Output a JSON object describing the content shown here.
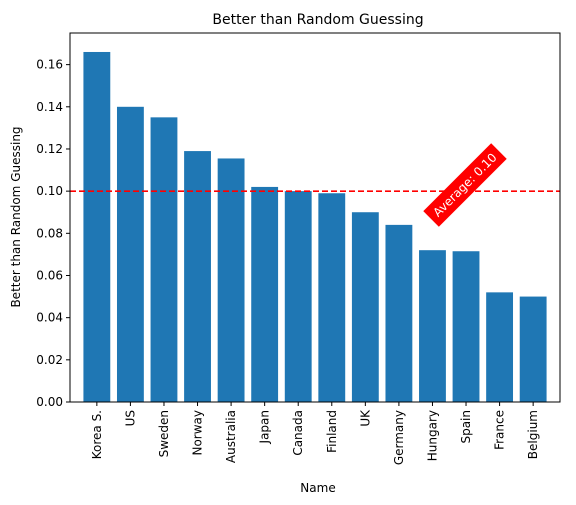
{
  "chart_data": {
    "type": "bar",
    "title": "Better than Random Guessing",
    "xlabel": "Name",
    "ylabel": "Better than Random Guessing",
    "categories": [
      "Korea S.",
      "US",
      "Sweden",
      "Norway",
      "Australia",
      "Japan",
      "Canada",
      "Finland",
      "UK",
      "Germany",
      "Hungary",
      "Spain",
      "France",
      "Belgium"
    ],
    "values": [
      0.166,
      0.14,
      0.135,
      0.119,
      0.1155,
      0.102,
      0.1,
      0.099,
      0.09,
      0.084,
      0.072,
      0.0715,
      0.052,
      0.05
    ],
    "ylim": [
      0,
      0.175
    ],
    "yticks": [
      0.0,
      0.02,
      0.04,
      0.06,
      0.08,
      0.1,
      0.12,
      0.14,
      0.16
    ],
    "ytick_labels": [
      "0.00",
      "0.02",
      "0.04",
      "0.06",
      "0.08",
      "0.10",
      "0.12",
      "0.14",
      "0.16"
    ],
    "grid": false,
    "bar_color": "#1f77b4",
    "reference_line": {
      "value": 0.1,
      "color": "#ff0000",
      "style": "dashed"
    },
    "annotation": {
      "text": "Average: 0.10",
      "background": "#ff0000",
      "text_color": "#ffffff",
      "rotation_deg": 45
    }
  }
}
